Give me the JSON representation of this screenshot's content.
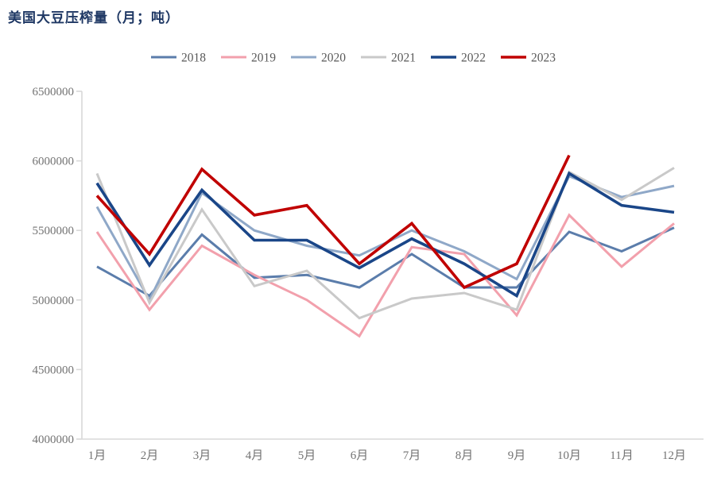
{
  "chart_data": {
    "type": "line",
    "title": "美国大豆压榨量（月；吨）",
    "xlabel": "",
    "ylabel": "",
    "categories": [
      "1月",
      "2月",
      "3月",
      "4月",
      "5月",
      "6月",
      "7月",
      "8月",
      "9月",
      "10月",
      "11月",
      "12月"
    ],
    "series": [
      {
        "name": "2018",
        "color": "#5b7dab",
        "width": 3,
        "values": [
          5240000,
          5030000,
          5470000,
          5160000,
          5180000,
          5090000,
          5330000,
          5090000,
          5090000,
          5490000,
          5350000,
          5520000
        ]
      },
      {
        "name": "2019",
        "color": "#f2a0ac",
        "width": 3,
        "values": [
          5490000,
          4930000,
          5390000,
          5180000,
          5000000,
          4740000,
          5380000,
          5330000,
          4890000,
          5610000,
          5240000,
          5550000
        ]
      },
      {
        "name": "2020",
        "color": "#8fa8c8",
        "width": 3,
        "values": [
          5670000,
          5000000,
          5770000,
          5500000,
          5390000,
          5320000,
          5500000,
          5350000,
          5150000,
          5890000,
          5740000,
          5820000
        ]
      },
      {
        "name": "2021",
        "color": "#c9c9c9",
        "width": 3,
        "values": [
          5910000,
          4980000,
          5650000,
          5100000,
          5210000,
          4870000,
          5010000,
          5050000,
          4930000,
          5920000,
          5720000,
          5950000
        ]
      },
      {
        "name": "2022",
        "color": "#1a4688",
        "width": 3.6,
        "values": [
          5840000,
          5250000,
          5790000,
          5430000,
          5430000,
          5230000,
          5440000,
          5260000,
          5030000,
          5910000,
          5680000,
          5630000
        ]
      },
      {
        "name": "2023",
        "color": "#c00000",
        "width": 3.6,
        "values": [
          5750000,
          5330000,
          5940000,
          5610000,
          5680000,
          5260000,
          5550000,
          5090000,
          5260000,
          6040000,
          null,
          null
        ]
      }
    ],
    "ylim": [
      4000000,
      6500000
    ],
    "ytick_step": 500000,
    "grid": false,
    "legend_position": "top",
    "axis_color": "#d9d9d9",
    "tick_label_color": "#737373",
    "legend_label_color": "#595959",
    "title_color": "#1f3864"
  }
}
